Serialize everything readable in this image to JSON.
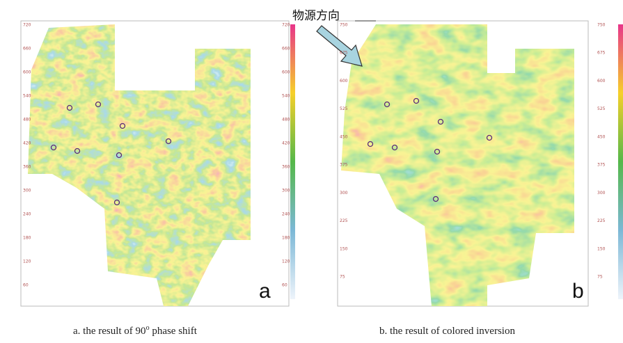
{
  "arrow_label": "物源方向",
  "panels": [
    {
      "label": "a",
      "caption": "a. the result of 90",
      "caption_sup": "o",
      "caption_tail": " phase shift",
      "y_ticks": [
        "720",
        "660",
        "600",
        "540",
        "480",
        "420",
        "360",
        "300",
        "240",
        "180",
        "120",
        "60"
      ]
    },
    {
      "label": "b",
      "caption": "b. the result of colored inversion",
      "y_ticks": [
        "750",
        "675",
        "600",
        "525",
        "450",
        "375",
        "300",
        "225",
        "150",
        "75"
      ]
    }
  ]
}
